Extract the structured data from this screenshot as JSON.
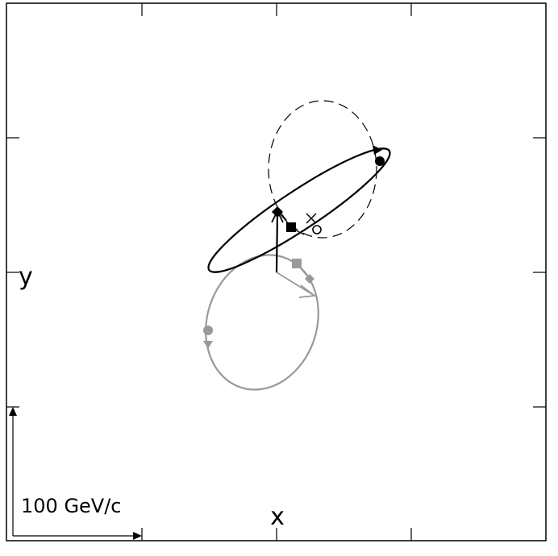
{
  "axes": {
    "x_label": "x",
    "y_label": "y"
  },
  "scale_bar": {
    "label": "100 GeV/c"
  },
  "colors": {
    "primary": "#000000",
    "secondary": "#999999",
    "background": "#ffffff"
  },
  "curves": [
    {
      "name": "black-solid-ellipse",
      "style": "solid",
      "color": "#000000"
    },
    {
      "name": "black-dashed-ellipse",
      "style": "dashed",
      "color": "#000000"
    },
    {
      "name": "gray-ellipse",
      "style": "solid",
      "color": "#999999"
    }
  ],
  "markers": [
    {
      "name": "black-circle",
      "shape": "filled-circle",
      "color": "#000000"
    },
    {
      "name": "black-square",
      "shape": "filled-square",
      "color": "#000000"
    },
    {
      "name": "black-diamond",
      "shape": "filled-diamond",
      "color": "#000000"
    },
    {
      "name": "open-circle",
      "shape": "open-circle",
      "color": "#000000"
    },
    {
      "name": "cross",
      "shape": "x",
      "color": "#000000"
    },
    {
      "name": "gray-circle",
      "shape": "filled-circle",
      "color": "#999999"
    },
    {
      "name": "gray-square",
      "shape": "filled-square",
      "color": "#999999"
    },
    {
      "name": "gray-diamond",
      "shape": "filled-diamond",
      "color": "#999999"
    }
  ]
}
